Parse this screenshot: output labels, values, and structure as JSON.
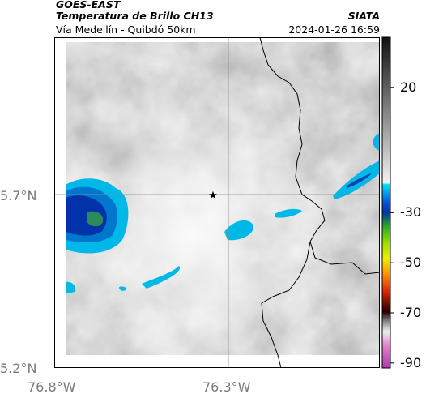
{
  "header": {
    "satellite": "GOES-EAST",
    "product": "Temperatura de Brillo CH13",
    "agency": "SIATA",
    "region": "Vía Medellín - Quibdó 50km",
    "datetime": "2024-01-26 16:59"
  },
  "axes": {
    "y_ticks": [
      {
        "label": "5.7°N",
        "value": 5.7
      },
      {
        "label": "5.2°N",
        "value": 5.2
      }
    ],
    "x_ticks": [
      {
        "label": "76.8°W",
        "value": -76.8
      },
      {
        "label": "76.3°W",
        "value": -76.3
      }
    ]
  },
  "colorbar": {
    "ticks": [
      {
        "label": "20",
        "value": 20
      },
      {
        "label": "-30",
        "value": -30
      },
      {
        "label": "-50",
        "value": -50
      },
      {
        "label": "-70",
        "value": -70
      },
      {
        "label": "-90",
        "value": -90
      }
    ],
    "range": [
      -92,
      40
    ],
    "colors": {
      "warm_top": "#111111",
      "warm_bottom": "#f2f2f2",
      "cyan": "#00b8e8",
      "blue": "#0033aa",
      "green": "#22aa22",
      "yellow": "#eeee00",
      "red": "#dd2200",
      "dark": "#220000",
      "magenta": "#bb33aa"
    }
  },
  "map": {
    "marker_icon": "star-icon",
    "border_color": "#000000",
    "gridline_color": "#888888"
  }
}
